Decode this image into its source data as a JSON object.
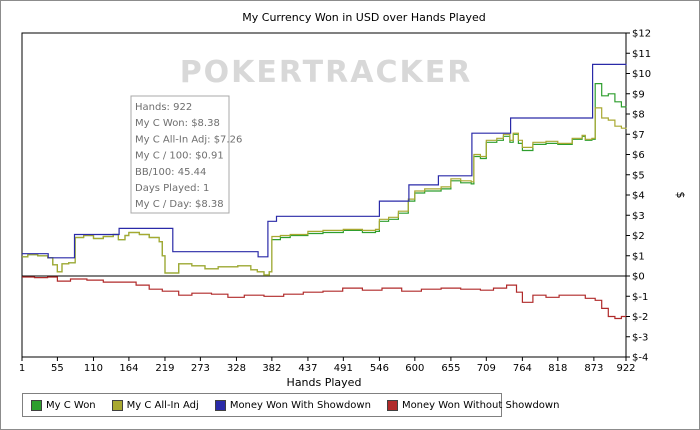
{
  "chart_data": {
    "type": "line",
    "title": "My Currency Won in USD over Hands Played",
    "xlabel": "Hands Played",
    "ylabel": "$",
    "xlim": [
      1,
      922
    ],
    "ylim": [
      -4,
      12
    ],
    "x_ticks": [
      1,
      55,
      110,
      164,
      219,
      273,
      328,
      382,
      437,
      491,
      546,
      600,
      655,
      709,
      764,
      818,
      873,
      922
    ],
    "y_ticks": [
      {
        "value": 12,
        "label": "$12"
      },
      {
        "value": 11,
        "label": "$11"
      },
      {
        "value": 10,
        "label": "$10"
      },
      {
        "value": 9,
        "label": "$9"
      },
      {
        "value": 8,
        "label": "$8"
      },
      {
        "value": 7,
        "label": "$7"
      },
      {
        "value": 6,
        "label": "$6"
      },
      {
        "value": 5,
        "label": "$5"
      },
      {
        "value": 4,
        "label": "$4"
      },
      {
        "value": 3,
        "label": "$3"
      },
      {
        "value": 2,
        "label": "$2"
      },
      {
        "value": 1,
        "label": "$1"
      },
      {
        "value": 0,
        "label": "$0"
      },
      {
        "value": -1,
        "label": "$-1"
      },
      {
        "value": -2,
        "label": "$-2"
      },
      {
        "value": -3,
        "label": "$-3"
      },
      {
        "value": -4,
        "label": "$-4"
      }
    ],
    "grid": false,
    "legend_position": "bottom-left",
    "series": [
      {
        "name": "My C Won",
        "color": "#2e9e2e",
        "points": [
          [
            1,
            0.95
          ],
          [
            10,
            1.05
          ],
          [
            25,
            1.0
          ],
          [
            40,
            0.9
          ],
          [
            48,
            0.55
          ],
          [
            55,
            0.2
          ],
          [
            62,
            0.6
          ],
          [
            72,
            0.65
          ],
          [
            82,
            1.9
          ],
          [
            95,
            2.0
          ],
          [
            110,
            1.85
          ],
          [
            125,
            1.95
          ],
          [
            140,
            2.05
          ],
          [
            148,
            1.8
          ],
          [
            158,
            2.0
          ],
          [
            164,
            2.15
          ],
          [
            180,
            2.05
          ],
          [
            195,
            1.9
          ],
          [
            210,
            1.7
          ],
          [
            215,
            1.0
          ],
          [
            219,
            0.15
          ],
          [
            240,
            0.6
          ],
          [
            260,
            0.5
          ],
          [
            280,
            0.35
          ],
          [
            300,
            0.45
          ],
          [
            330,
            0.5
          ],
          [
            350,
            0.3
          ],
          [
            360,
            0.2
          ],
          [
            370,
            0.05
          ],
          [
            378,
            0.2
          ],
          [
            382,
            1.8
          ],
          [
            395,
            1.9
          ],
          [
            410,
            2.0
          ],
          [
            437,
            2.1
          ],
          [
            460,
            2.15
          ],
          [
            491,
            2.25
          ],
          [
            520,
            2.15
          ],
          [
            540,
            2.2
          ],
          [
            546,
            2.7
          ],
          [
            560,
            2.8
          ],
          [
            575,
            3.1
          ],
          [
            590,
            3.7
          ],
          [
            600,
            4.1
          ],
          [
            615,
            4.2
          ],
          [
            640,
            4.3
          ],
          [
            655,
            4.7
          ],
          [
            670,
            4.6
          ],
          [
            686,
            4.55
          ],
          [
            690,
            5.9
          ],
          [
            700,
            5.8
          ],
          [
            709,
            6.6
          ],
          [
            725,
            6.7
          ],
          [
            735,
            6.9
          ],
          [
            745,
            6.6
          ],
          [
            750,
            7.0
          ],
          [
            758,
            6.55
          ],
          [
            764,
            6.2
          ],
          [
            780,
            6.5
          ],
          [
            800,
            6.55
          ],
          [
            818,
            6.5
          ],
          [
            840,
            6.75
          ],
          [
            855,
            6.9
          ],
          [
            860,
            6.7
          ],
          [
            870,
            6.75
          ],
          [
            875,
            9.5
          ],
          [
            885,
            8.9
          ],
          [
            895,
            9.0
          ],
          [
            905,
            8.6
          ],
          [
            915,
            8.35
          ],
          [
            922,
            8.38
          ]
        ]
      },
      {
        "name": "My C All-In Adj",
        "color": "#a8a830",
        "points": [
          [
            1,
            0.95
          ],
          [
            10,
            1.05
          ],
          [
            25,
            1.0
          ],
          [
            40,
            0.9
          ],
          [
            48,
            0.55
          ],
          [
            55,
            0.2
          ],
          [
            62,
            0.6
          ],
          [
            72,
            0.65
          ],
          [
            82,
            1.9
          ],
          [
            95,
            2.0
          ],
          [
            110,
            1.85
          ],
          [
            125,
            1.95
          ],
          [
            140,
            2.05
          ],
          [
            148,
            1.8
          ],
          [
            158,
            2.0
          ],
          [
            164,
            2.15
          ],
          [
            180,
            2.05
          ],
          [
            195,
            1.9
          ],
          [
            210,
            1.7
          ],
          [
            215,
            1.0
          ],
          [
            219,
            0.15
          ],
          [
            240,
            0.6
          ],
          [
            260,
            0.5
          ],
          [
            280,
            0.35
          ],
          [
            300,
            0.45
          ],
          [
            330,
            0.5
          ],
          [
            350,
            0.3
          ],
          [
            360,
            0.2
          ],
          [
            370,
            0.05
          ],
          [
            378,
            0.2
          ],
          [
            382,
            1.95
          ],
          [
            395,
            2.0
          ],
          [
            410,
            2.05
          ],
          [
            437,
            2.2
          ],
          [
            460,
            2.25
          ],
          [
            491,
            2.3
          ],
          [
            520,
            2.25
          ],
          [
            540,
            2.3
          ],
          [
            546,
            2.8
          ],
          [
            560,
            2.9
          ],
          [
            575,
            3.2
          ],
          [
            590,
            3.8
          ],
          [
            600,
            4.2
          ],
          [
            615,
            4.3
          ],
          [
            640,
            4.4
          ],
          [
            655,
            4.8
          ],
          [
            670,
            4.7
          ],
          [
            686,
            4.65
          ],
          [
            690,
            6.0
          ],
          [
            700,
            5.9
          ],
          [
            709,
            6.7
          ],
          [
            725,
            6.8
          ],
          [
            735,
            7.0
          ],
          [
            745,
            6.7
          ],
          [
            750,
            7.05
          ],
          [
            758,
            6.7
          ],
          [
            764,
            6.35
          ],
          [
            780,
            6.6
          ],
          [
            800,
            6.65
          ],
          [
            818,
            6.55
          ],
          [
            840,
            6.8
          ],
          [
            855,
            6.95
          ],
          [
            860,
            6.75
          ],
          [
            870,
            6.8
          ],
          [
            875,
            8.3
          ],
          [
            885,
            7.8
          ],
          [
            895,
            7.7
          ],
          [
            905,
            7.4
          ],
          [
            915,
            7.3
          ],
          [
            922,
            7.26
          ]
        ]
      },
      {
        "name": "Money Won With Showdown",
        "color": "#2a2aa8",
        "points": [
          [
            1,
            1.1
          ],
          [
            40,
            1.1
          ],
          [
            41,
            0.9
          ],
          [
            80,
            0.9
          ],
          [
            81,
            2.05
          ],
          [
            148,
            2.05
          ],
          [
            149,
            2.35
          ],
          [
            230,
            2.35
          ],
          [
            231,
            1.2
          ],
          [
            360,
            1.2
          ],
          [
            361,
            0.95
          ],
          [
            375,
            0.95
          ],
          [
            376,
            2.7
          ],
          [
            388,
            2.7
          ],
          [
            389,
            2.95
          ],
          [
            545,
            2.95
          ],
          [
            546,
            3.7
          ],
          [
            590,
            3.7
          ],
          [
            591,
            4.5
          ],
          [
            635,
            4.5
          ],
          [
            636,
            4.95
          ],
          [
            686,
            4.95
          ],
          [
            687,
            7.05
          ],
          [
            745,
            7.05
          ],
          [
            746,
            7.8
          ],
          [
            870,
            7.8
          ],
          [
            871,
            10.45
          ],
          [
            922,
            10.4
          ]
        ]
      },
      {
        "name": "Money Won Without Showdown",
        "color": "#b02a2a",
        "points": [
          [
            1,
            -0.05
          ],
          [
            20,
            -0.08
          ],
          [
            40,
            -0.05
          ],
          [
            55,
            -0.25
          ],
          [
            75,
            -0.15
          ],
          [
            100,
            -0.2
          ],
          [
            125,
            -0.3
          ],
          [
            150,
            -0.3
          ],
          [
            175,
            -0.45
          ],
          [
            195,
            -0.65
          ],
          [
            215,
            -0.75
          ],
          [
            240,
            -0.95
          ],
          [
            260,
            -0.85
          ],
          [
            290,
            -0.9
          ],
          [
            315,
            -1.05
          ],
          [
            340,
            -0.95
          ],
          [
            370,
            -1.0
          ],
          [
            400,
            -0.9
          ],
          [
            430,
            -0.8
          ],
          [
            460,
            -0.75
          ],
          [
            490,
            -0.6
          ],
          [
            520,
            -0.7
          ],
          [
            550,
            -0.6
          ],
          [
            580,
            -0.75
          ],
          [
            610,
            -0.65
          ],
          [
            640,
            -0.6
          ],
          [
            670,
            -0.65
          ],
          [
            700,
            -0.7
          ],
          [
            720,
            -0.6
          ],
          [
            740,
            -0.45
          ],
          [
            755,
            -0.8
          ],
          [
            764,
            -1.3
          ],
          [
            780,
            -0.95
          ],
          [
            800,
            -1.05
          ],
          [
            820,
            -0.95
          ],
          [
            840,
            -0.95
          ],
          [
            860,
            -1.1
          ],
          [
            875,
            -1.2
          ],
          [
            885,
            -1.6
          ],
          [
            895,
            -2.0
          ],
          [
            905,
            -2.1
          ],
          [
            915,
            -2.0
          ],
          [
            922,
            -1.95
          ]
        ]
      }
    ],
    "tooltip": {
      "lines": [
        "Hands: 922",
        "My C Won: $8.38",
        "My C All-In Adj: $7.26",
        "My C / 100: $0.91",
        "BB/100: 45.44",
        "Days Played: 1",
        "My C / Day: $8.38"
      ]
    },
    "watermark": "POKERTRACKER"
  }
}
